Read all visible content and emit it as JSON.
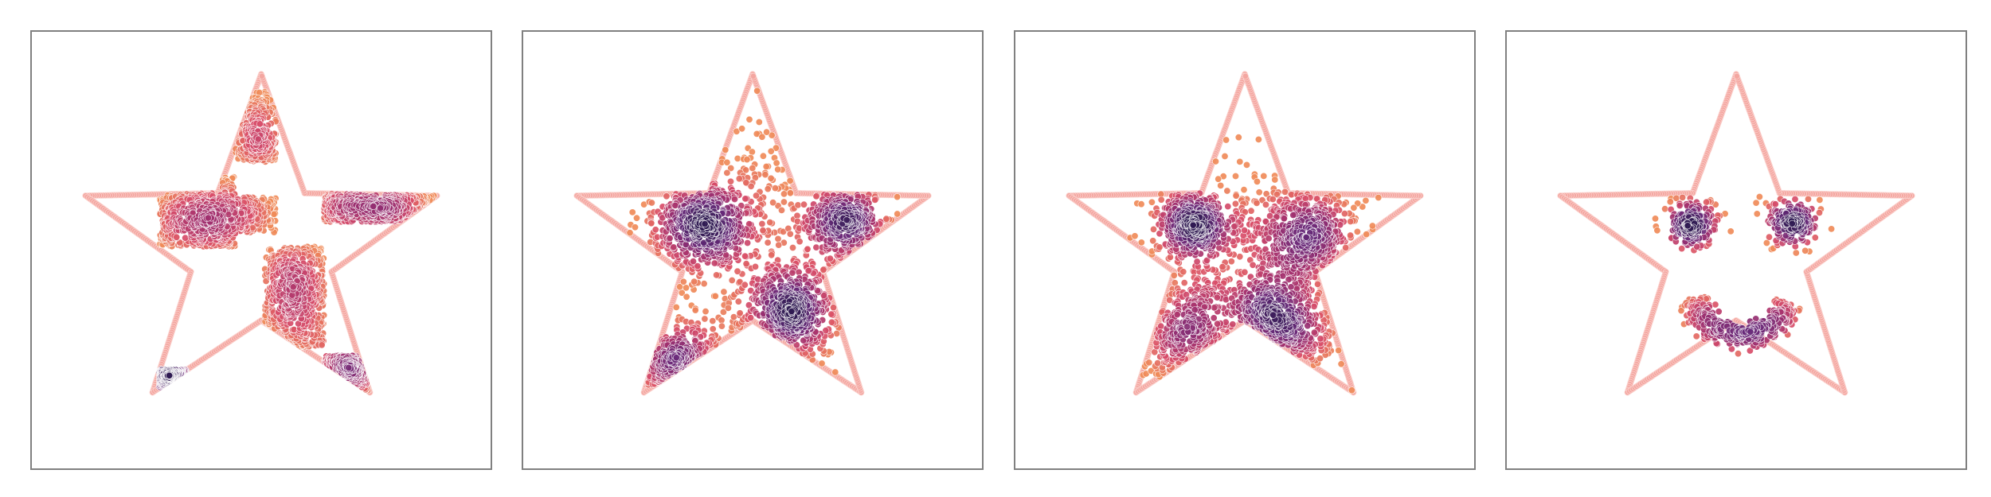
{
  "chart_data": [
    {
      "type": "scatter",
      "title": "",
      "xlabel": "",
      "ylabel": "",
      "xlim": [
        -1.25,
        1.25
      ],
      "ylim": [
        -1.25,
        1.25
      ],
      "grid": false,
      "ticks": "none",
      "boundary": {
        "shape": "five-pointed-star",
        "color": "#f4a6a0"
      },
      "density_colormap": [
        "#f08c5a",
        "#d94e6a",
        "#a1306f",
        "#6a2a7a",
        "#2f1a52"
      ],
      "distribution": "checkerboard-clipped-to-star",
      "regions": [
        {
          "x": [
            -0.14,
            0.08
          ],
          "y": [
            0.5,
            0.9
          ]
        },
        {
          "x": [
            -0.14,
            0.08
          ],
          "y": [
            0.1,
            0.3
          ]
        },
        {
          "x": [
            -0.55,
            -0.14
          ],
          "y": [
            0.02,
            0.42
          ]
        },
        {
          "x": [
            0.34,
            0.98
          ],
          "y": [
            0.16,
            0.42
          ]
        },
        {
          "x": [
            0.02,
            0.34
          ],
          "y": [
            -0.55,
            0.02
          ]
        },
        {
          "x": [
            -0.55,
            -0.14
          ],
          "y": [
            -0.95,
            -0.68
          ]
        },
        {
          "x": [
            0.34,
            0.62
          ],
          "y": [
            -0.95,
            -0.6
          ]
        }
      ]
    },
    {
      "type": "scatter",
      "title": "",
      "xlabel": "",
      "ylabel": "",
      "xlim": [
        -1.25,
        1.25
      ],
      "ylim": [
        -1.25,
        1.25
      ],
      "grid": false,
      "ticks": "none",
      "boundary": {
        "shape": "five-pointed-star",
        "color": "#f4a6a0"
      },
      "density_colormap": [
        "#f08c5a",
        "#d94e6a",
        "#a1306f",
        "#6a2a7a",
        "#2f1a52"
      ],
      "distribution": "gaussian-mixture",
      "clusters": [
        {
          "center": [
            -0.28,
            0.15
          ],
          "spread": 0.13,
          "weight": 3
        },
        {
          "center": [
            0.5,
            0.17
          ],
          "spread": 0.11,
          "weight": 2
        },
        {
          "center": [
            0.2,
            -0.35
          ],
          "spread": 0.14,
          "weight": 3
        },
        {
          "center": [
            -0.4,
            -0.7
          ],
          "spread": 0.12,
          "weight": 1.5
        },
        {
          "center": [
            0.0,
            0.25
          ],
          "spread": 0.34,
          "weight": 1.5
        }
      ]
    },
    {
      "type": "scatter",
      "title": "",
      "xlabel": "",
      "ylabel": "",
      "xlim": [
        -1.25,
        1.25
      ],
      "ylim": [
        -1.25,
        1.25
      ],
      "grid": false,
      "ticks": "none",
      "boundary": {
        "shape": "five-pointed-star",
        "color": "#f4a6a0"
      },
      "density_colormap": [
        "#f08c5a",
        "#d94e6a",
        "#a1306f",
        "#6a2a7a",
        "#2f1a52"
      ],
      "distribution": "gaussian-mixture",
      "clusters": [
        {
          "center": [
            -0.28,
            0.15
          ],
          "spread": 0.1,
          "weight": 2.5
        },
        {
          "center": [
            0.32,
            0.08
          ],
          "spread": 0.15,
          "weight": 3
        },
        {
          "center": [
            0.15,
            -0.45
          ],
          "spread": 0.15,
          "weight": 3
        },
        {
          "center": [
            -0.3,
            -0.5
          ],
          "spread": 0.16,
          "weight": 2
        },
        {
          "center": [
            0.0,
            -0.1
          ],
          "spread": 0.34,
          "weight": 1.5
        }
      ]
    },
    {
      "type": "scatter",
      "title": "",
      "xlabel": "",
      "ylabel": "",
      "xlim": [
        -1.25,
        1.25
      ],
      "ylim": [
        -1.25,
        1.25
      ],
      "grid": false,
      "ticks": "none",
      "boundary": {
        "shape": "five-pointed-star",
        "color": "#f4a6a0"
      },
      "density_colormap": [
        "#f08c5a",
        "#d94e6a",
        "#a1306f",
        "#6a2a7a",
        "#2f1a52"
      ],
      "distribution": "smiley-face",
      "clusters": [
        {
          "center": [
            -0.24,
            0.16
          ],
          "spread": 0.07,
          "weight": 1
        },
        {
          "center": [
            0.3,
            0.16
          ],
          "spread": 0.07,
          "weight": 1
        }
      ],
      "arc": {
        "center": [
          0.03,
          -0.22
        ],
        "radius": 0.27,
        "from_deg": 192,
        "to_deg": 342,
        "spread": 0.04
      }
    }
  ]
}
